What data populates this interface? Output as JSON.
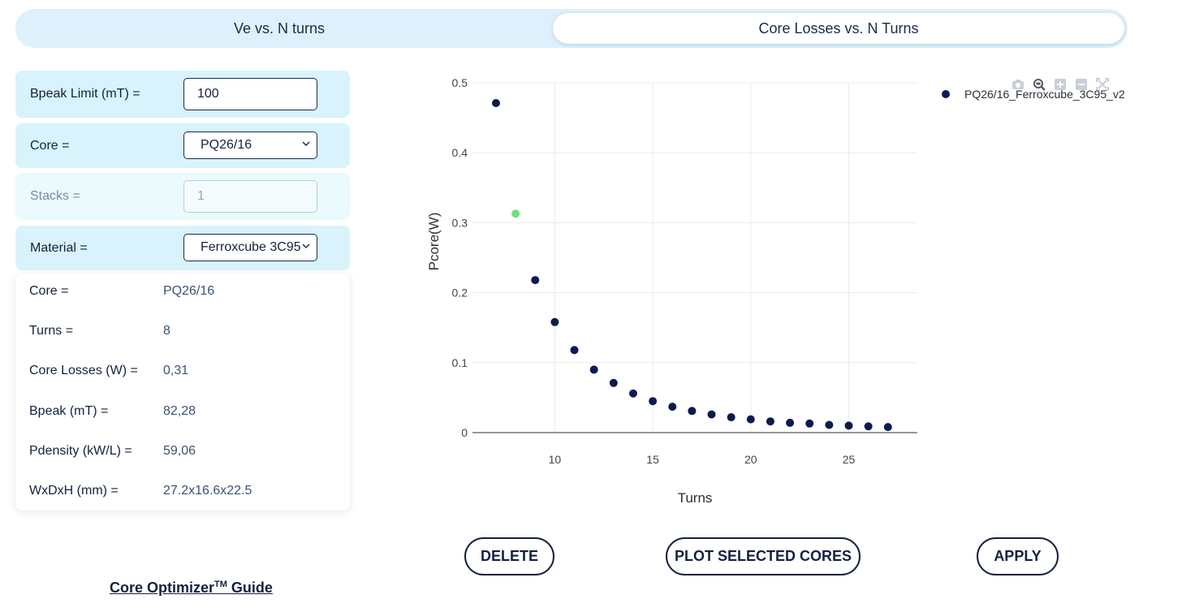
{
  "tabs": [
    {
      "label": "Ve vs. N turns",
      "active": false
    },
    {
      "label": "Core Losses vs. N Turns",
      "active": true
    }
  ],
  "form": {
    "bpeak_limit": {
      "label": "Bpeak Limit (mT) =",
      "value": "100"
    },
    "core": {
      "label": "Core =",
      "value": "PQ26/16"
    },
    "stacks": {
      "label": "Stacks =",
      "value": "1"
    },
    "material": {
      "label": "Material =",
      "value": "Ferroxcube 3C95"
    }
  },
  "info": [
    {
      "label": "Core =",
      "value": "PQ26/16"
    },
    {
      "label": "Turns =",
      "value": "8"
    },
    {
      "label": "Core Losses (W) =",
      "value": "0,31"
    },
    {
      "label": "Bpeak (mT) =",
      "value": "82,28"
    },
    {
      "label": "Pdensity (kW/L) =",
      "value": "59,06"
    },
    {
      "label": "WxDxH (mm) =",
      "value": "27.2x16.6x22.5"
    }
  ],
  "buttons": {
    "delete": "DELETE",
    "plot_selected": "PLOT SELECTED CORES",
    "apply": "APPLY"
  },
  "guide": {
    "text": "Core Optimizer",
    "sup": "TM",
    "suffix": " Guide"
  },
  "modebar_icons": [
    "camera-icon",
    "zoom-icon",
    "zoom-in-icon",
    "zoom-out-icon",
    "autoscale-icon"
  ],
  "colors": {
    "marker": "#0d1b4c",
    "selected_marker": "#6ee07a",
    "tab_bg": "#ddf0fb",
    "row_bg": "#d8f3fb"
  },
  "chart_data": {
    "type": "scatter",
    "xlabel": "Turns",
    "ylabel": "Pcore(W)",
    "xlim": [
      5.8,
      28.5
    ],
    "ylim": [
      0,
      0.5
    ],
    "xticks": [
      10,
      15,
      20,
      25
    ],
    "yticks": [
      0,
      0.1,
      0.2,
      0.3,
      0.4,
      0.5
    ],
    "ytick_labels": [
      "0",
      "0.1",
      "0.2",
      "0.3",
      "0.4",
      "0.5"
    ],
    "grid": true,
    "legend_position": "top-right",
    "series": [
      {
        "name": "PQ26/16_Ferroxcube_3C95_v2",
        "x": [
          7,
          9,
          10,
          11,
          12,
          13,
          14,
          15,
          16,
          17,
          18,
          19,
          20,
          21,
          22,
          23,
          24,
          25,
          26,
          27
        ],
        "y": [
          0.471,
          0.218,
          0.158,
          0.118,
          0.09,
          0.071,
          0.056,
          0.045,
          0.037,
          0.031,
          0.026,
          0.022,
          0.019,
          0.016,
          0.014,
          0.013,
          0.011,
          0.01,
          0.009,
          0.008
        ]
      }
    ],
    "selected_point": {
      "x": 8,
      "y": 0.313
    }
  }
}
